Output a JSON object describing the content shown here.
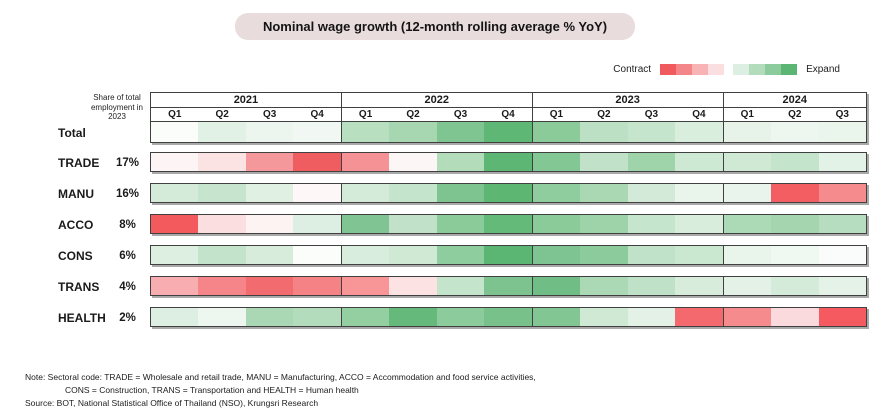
{
  "title": "Nominal wage growth (12-month rolling average % YoY)",
  "legend": {
    "contract_label": "Contract",
    "expand_label": "Expand",
    "contract_colors": [
      "#f0595d",
      "#f48689",
      "#f8b3b5",
      "#fbdfe0"
    ],
    "expand_colors": [
      "#ddefe2",
      "#b3dcbc",
      "#8ccb9b",
      "#5cb673"
    ]
  },
  "header": {
    "share_note": "Share of total employment in 2023",
    "years": [
      {
        "label": "2021",
        "quarters": [
          "Q1",
          "Q2",
          "Q3",
          "Q4"
        ]
      },
      {
        "label": "2022",
        "quarters": [
          "Q1",
          "Q2",
          "Q3",
          "Q4"
        ]
      },
      {
        "label": "2023",
        "quarters": [
          "Q1",
          "Q2",
          "Q3",
          "Q4"
        ]
      },
      {
        "label": "2024",
        "quarters": [
          "Q1",
          "Q2",
          "Q3"
        ]
      }
    ]
  },
  "chart_data": {
    "type": "heatmap",
    "title": "Nominal wage growth (12-month rolling average % YoY)",
    "color_scale": {
      "negative_end": "Contract",
      "positive_end": "Expand",
      "negative_color": "#f0595d",
      "positive_color": "#5cb673",
      "neutral_color": "#ffffff"
    },
    "x": [
      "2021 Q1",
      "2021 Q2",
      "2021 Q3",
      "2021 Q4",
      "2022 Q1",
      "2022 Q2",
      "2022 Q3",
      "2022 Q4",
      "2023 Q1",
      "2023 Q2",
      "2023 Q3",
      "2023 Q4",
      "2024 Q1",
      "2024 Q2",
      "2024 Q3"
    ],
    "rows": [
      {
        "label": "Total",
        "share": "",
        "colors": [
          "#fbfdfb",
          "#e2f1e6",
          "#ecf6ee",
          "#f1f8f3",
          "#b7dfc0",
          "#a6d7b1",
          "#7ec591",
          "#5eb775",
          "#8bcb9a",
          "#bce0c4",
          "#c6e5cd",
          "#daeedd",
          "#e7f3e9",
          "#edf6ef",
          "#eaf5ec"
        ]
      },
      {
        "label": "TRADE",
        "share": "17%",
        "colors": [
          "#fdf5f5",
          "#fbe3e4",
          "#f5989b",
          "#f05d60",
          "#f59296",
          "#fdf6f6",
          "#b3dcbb",
          "#5db674",
          "#83c794",
          "#c1e2c8",
          "#9fd4ab",
          "#cde8d3",
          "#cfe9d5",
          "#c5e4cc",
          "#e3f2e6"
        ]
      },
      {
        "label": "MANU",
        "share": "16%",
        "colors": [
          "#d5ebda",
          "#c7e5ce",
          "#e0f0e3",
          "#fdf7f7",
          "#d5ebd9",
          "#c4e4cb",
          "#7ec491",
          "#5db773",
          "#90cd9e",
          "#a9d8b3",
          "#d3ead8",
          "#e9f4eb",
          "#e9f4ec",
          "#f25e62",
          "#f68b8e"
        ]
      },
      {
        "label": "ACCO",
        "share": "8%",
        "colors": [
          "#f25a5e",
          "#fbdfe0",
          "#fdf3f3",
          "#ddefe2",
          "#7fc492",
          "#c1e2c8",
          "#8bcb9a",
          "#63ba79",
          "#8bcb9a",
          "#9ed3aa",
          "#c6e5cd",
          "#d8eddc",
          "#acd9b6",
          "#a4d5af",
          "#b6ddbf"
        ]
      },
      {
        "label": "CONS",
        "share": "6%",
        "colors": [
          "#ddefe1",
          "#c3e3ca",
          "#d8ecdc",
          "#fbfdfb",
          "#d9edde",
          "#cfe9d5",
          "#8ecd9d",
          "#5cb673",
          "#7ec492",
          "#8ccb9b",
          "#c0e2c8",
          "#cae7d0",
          "#e9f4eb",
          "#eff8f1",
          "#f9fcfa"
        ]
      },
      {
        "label": "TRANS",
        "share": "4%",
        "colors": [
          "#f8aeb0",
          "#f58588",
          "#f26b6e",
          "#f58285",
          "#f79597",
          "#fce2e3",
          "#c5e4cc",
          "#7dc390",
          "#70be86",
          "#abd9b5",
          "#bfe1c7",
          "#d8ecdc",
          "#e3f1e6",
          "#d4ebd9",
          "#e5f2e8"
        ]
      },
      {
        "label": "HEALTH",
        "share": "2%",
        "colors": [
          "#ddefe2",
          "#edf6ef",
          "#aad8b4",
          "#b3dcbc",
          "#94cfa2",
          "#65ba7b",
          "#8ccb9b",
          "#78c18b",
          "#81c693",
          "#d0e9d5",
          "#e3f1e6",
          "#f4696d",
          "#f68b8e",
          "#fadadc",
          "#f45a5f"
        ]
      }
    ]
  },
  "notes": {
    "line1": "Note: Sectoral code: TRADE = Wholesale and retail trade, MANU = Manufacturing, ACCO = Accommodation and food service activities,",
    "line2": "CONS = Construction, TRANS = Transportation and HEALTH = Human health",
    "source": "Source: BOT, National Statistical Office of Thailand (NSO), Krungsri Research"
  }
}
